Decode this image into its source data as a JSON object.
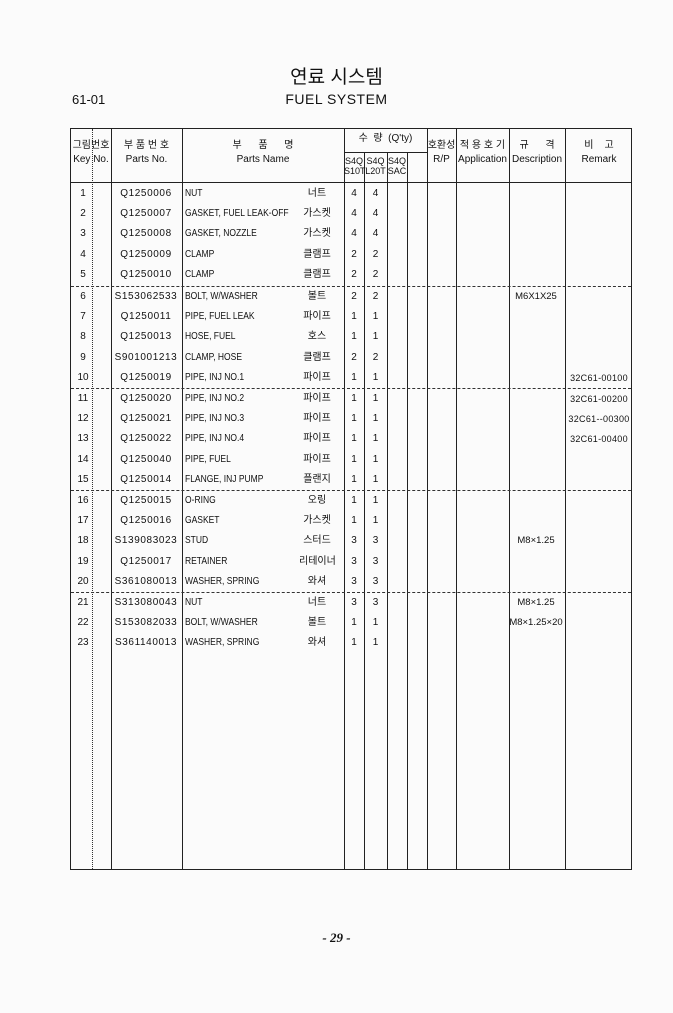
{
  "header": {
    "title_kr": "연료 시스템",
    "title_en": "FUEL SYSTEM",
    "section_code": "61-01"
  },
  "columns": {
    "key_kr": "그림번호",
    "key_en": "Key No.",
    "parts_no_kr": "부 품 번 호",
    "parts_no_en": "Parts No.",
    "parts_name_kr": "부      품      명",
    "parts_name_en": "Parts Name",
    "qty_kr": "수  량  (Q'ty)",
    "qty_models": [
      "S4Q S10T",
      "S4Q L20T",
      "S4Q SAC"
    ],
    "rp_kr": "호환성",
    "rp_en": "R/P",
    "app_kr": "적 용 호 기",
    "app_en": "Application",
    "desc_kr": "규      격",
    "desc_en": "Description",
    "remark_kr": "비    고",
    "remark_en": "Remark"
  },
  "rows": [
    {
      "key": "1",
      "part_no": "Q1250006",
      "name": "NUT",
      "name_kr": "너트",
      "q1": "4",
      "q2": "4",
      "desc": "",
      "remark": ""
    },
    {
      "key": "2",
      "part_no": "Q1250007",
      "name": "GASKET,  FUEL  LEAK-OFF",
      "name_kr": "가스켓",
      "q1": "4",
      "q2": "4",
      "desc": "",
      "remark": ""
    },
    {
      "key": "3",
      "part_no": "Q1250008",
      "name": "GASKET,  NOZZLE",
      "name_kr": "가스켓",
      "q1": "4",
      "q2": "4",
      "desc": "",
      "remark": ""
    },
    {
      "key": "4",
      "part_no": "Q1250009",
      "name": "CLAMP",
      "name_kr": "클램프",
      "q1": "2",
      "q2": "2",
      "desc": "",
      "remark": ""
    },
    {
      "key": "5",
      "part_no": "Q1250010",
      "name": "CLAMP",
      "name_kr": "클램프",
      "q1": "2",
      "q2": "2",
      "desc": "",
      "remark": ""
    },
    {
      "key": "6",
      "part_no": "S153062533",
      "name": "BOLT,  W/WASHER",
      "name_kr": "볼트",
      "q1": "2",
      "q2": "2",
      "desc": "M6X1X25",
      "remark": ""
    },
    {
      "key": "7",
      "part_no": "Q1250011",
      "name": "PIPE,  FUEL  LEAK",
      "name_kr": "파이프",
      "q1": "1",
      "q2": "1",
      "desc": "",
      "remark": ""
    },
    {
      "key": "8",
      "part_no": "Q1250013",
      "name": "HOSE,  FUEL",
      "name_kr": "호스",
      "q1": "1",
      "q2": "1",
      "desc": "",
      "remark": ""
    },
    {
      "key": "9",
      "part_no": "S901001213",
      "name": "CLAMP,  HOSE",
      "name_kr": "클램프",
      "q1": "2",
      "q2": "2",
      "desc": "",
      "remark": ""
    },
    {
      "key": "10",
      "part_no": "Q1250019",
      "name": "PIPE,  INJ  NO.1",
      "name_kr": "파이프",
      "q1": "1",
      "q2": "1",
      "desc": "",
      "remark": "32C61-00100"
    },
    {
      "key": "11",
      "part_no": "Q1250020",
      "name": "PIPE,  INJ  NO.2",
      "name_kr": "파이프",
      "q1": "1",
      "q2": "1",
      "desc": "",
      "remark": "32C61-00200"
    },
    {
      "key": "12",
      "part_no": "Q1250021",
      "name": "PIPE,  INJ  NO.3",
      "name_kr": "파이프",
      "q1": "1",
      "q2": "1",
      "desc": "",
      "remark": "32C61--00300"
    },
    {
      "key": "13",
      "part_no": "Q1250022",
      "name": "PIPE,  INJ  NO.4",
      "name_kr": "파이프",
      "q1": "1",
      "q2": "1",
      "desc": "",
      "remark": "32C61-00400"
    },
    {
      "key": "14",
      "part_no": "Q1250040",
      "name": "PIPE,  FUEL",
      "name_kr": "파이프",
      "q1": "1",
      "q2": "1",
      "desc": "",
      "remark": ""
    },
    {
      "key": "15",
      "part_no": "Q1250014",
      "name": "FLANGE,  INJ  PUMP",
      "name_kr": "플랜지",
      "q1": "1",
      "q2": "1",
      "desc": "",
      "remark": ""
    },
    {
      "key": "16",
      "part_no": "Q1250015",
      "name": "O-RING",
      "name_kr": "오링",
      "q1": "1",
      "q2": "1",
      "desc": "",
      "remark": ""
    },
    {
      "key": "17",
      "part_no": "Q1250016",
      "name": "GASKET",
      "name_kr": "가스켓",
      "q1": "1",
      "q2": "1",
      "desc": "",
      "remark": ""
    },
    {
      "key": "18",
      "part_no": "S139083023",
      "name": "STUD",
      "name_kr": "스터드",
      "q1": "3",
      "q2": "3",
      "desc": "M8×1.25",
      "remark": ""
    },
    {
      "key": "19",
      "part_no": "Q1250017",
      "name": "RETAINER",
      "name_kr": "리테이너",
      "q1": "3",
      "q2": "3",
      "desc": "",
      "remark": ""
    },
    {
      "key": "20",
      "part_no": "S361080013",
      "name": "WASHER,  SPRING",
      "name_kr": "와셔",
      "q1": "3",
      "q2": "3",
      "desc": "",
      "remark": ""
    },
    {
      "key": "21",
      "part_no": "S313080043",
      "name": "NUT",
      "name_kr": "너트",
      "q1": "3",
      "q2": "3",
      "desc": "M8×1.25",
      "remark": ""
    },
    {
      "key": "22",
      "part_no": "S153082033",
      "name": "BOLT,  W/WASHER",
      "name_kr": "볼트",
      "q1": "1",
      "q2": "1",
      "desc": "M8×1.25×20",
      "remark": ""
    },
    {
      "key": "23",
      "part_no": "S361140013",
      "name": "WASHER,  SPRING",
      "name_kr": "와셔",
      "q1": "1",
      "q2": "1",
      "desc": "",
      "remark": ""
    }
  ],
  "footer": {
    "page_number": "- 29 -"
  }
}
